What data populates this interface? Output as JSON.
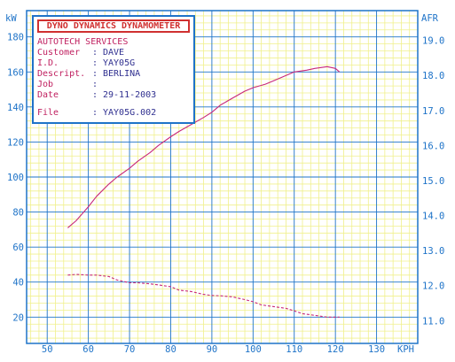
{
  "info_box": {
    "title": "DYNO DYNAMICS DYNAMOMETER",
    "company": "AUTOTECH SERVICES",
    "rows": [
      {
        "key": "Customer",
        "sep": ":",
        "value": "DAVE"
      },
      {
        "key": "I.D.",
        "sep": ":",
        "value": "YAY05G"
      },
      {
        "key": "Descript.",
        "sep": ":",
        "value": "BERLINA"
      },
      {
        "key": "Job",
        "sep": ":",
        "value": ""
      },
      {
        "key": "Date",
        "sep": ":",
        "value": "29-11-2003"
      },
      {
        "key": "File",
        "sep": ":",
        "value": "YAY05G.002"
      }
    ]
  },
  "colors": {
    "grid_major": "#1e73c8",
    "grid_minor": "#f0f08c",
    "power_line": "#c8287a",
    "afr_line": "#c8287a",
    "text": "#1e73c8"
  },
  "chart_data": {
    "type": "line",
    "x_unit": "KPH",
    "y_left_unit": "kW",
    "y_right_unit": "AFR",
    "xlim": [
      45,
      140
    ],
    "ylim": [
      5,
      195
    ],
    "y2lim": [
      10.35,
      19.85
    ],
    "x_ticks": [
      "50",
      "60",
      "70",
      "80",
      "90",
      "100",
      "110",
      "120",
      "130"
    ],
    "y_ticks": [
      "20",
      "40",
      "60",
      "80",
      "100",
      "120",
      "140",
      "160",
      "180"
    ],
    "y2_ticks": [
      "11.0",
      "12.0",
      "13.0",
      "14.0",
      "15.0",
      "16.0",
      "17.0",
      "18.0",
      "19.0"
    ],
    "grid": true,
    "series": [
      {
        "axis": "left",
        "style": "solid",
        "x": [
          55,
          57,
          60,
          62,
          65,
          67,
          70,
          72,
          75,
          77,
          80,
          82,
          85,
          88,
          90,
          92,
          95,
          98,
          100,
          103,
          105,
          108,
          110,
          113,
          115,
          118,
          120,
          121
        ],
        "y": [
          71,
          75,
          83,
          89,
          96,
          100,
          105,
          109,
          114,
          118,
          123,
          126,
          130,
          134,
          137,
          141,
          145,
          149,
          151,
          153,
          155,
          158,
          160,
          161,
          162,
          163,
          162,
          160
        ]
      },
      {
        "axis": "right",
        "style": "dashed",
        "x": [
          55,
          57,
          60,
          62,
          65,
          67,
          70,
          72,
          75,
          77,
          80,
          82,
          85,
          88,
          90,
          92,
          95,
          98,
          100,
          102,
          105,
          108,
          110,
          112,
          115,
          118,
          120,
          121
        ],
        "y": [
          12.3,
          12.32,
          12.3,
          12.3,
          12.26,
          12.16,
          12.08,
          12.08,
          12.05,
          12.02,
          11.97,
          11.87,
          11.83,
          11.75,
          11.72,
          11.71,
          11.68,
          11.6,
          11.54,
          11.45,
          11.4,
          11.35,
          11.28,
          11.2,
          11.15,
          11.1,
          11.1,
          11.1
        ]
      }
    ]
  }
}
